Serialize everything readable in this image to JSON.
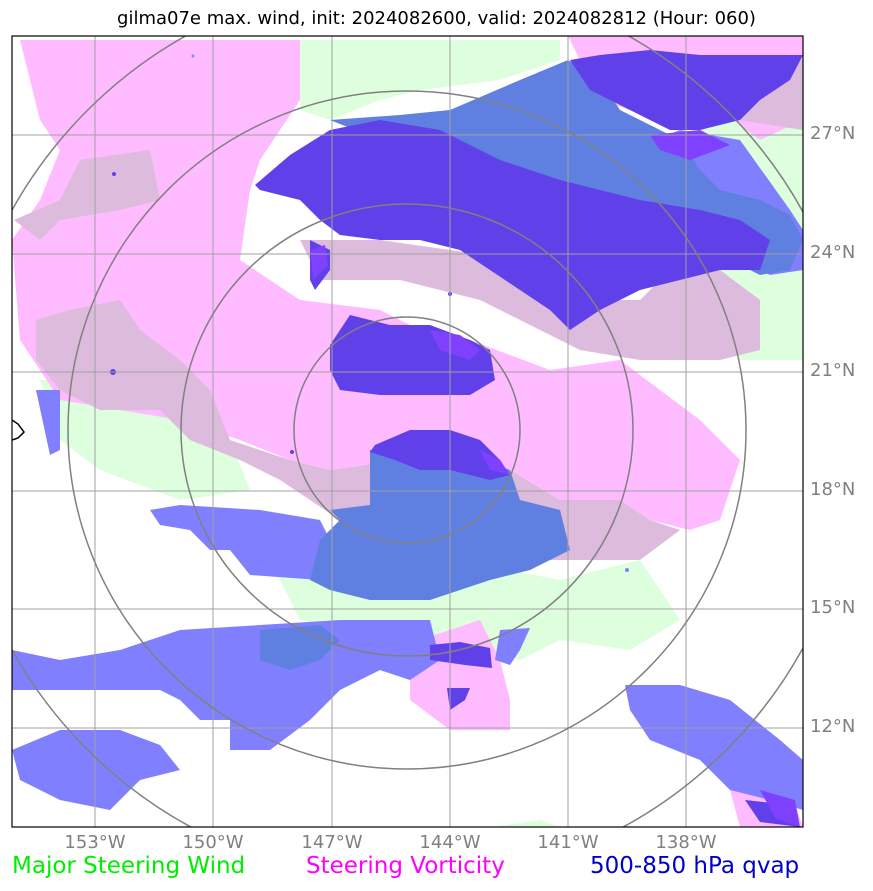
{
  "title": "gilma07e max. wind, init: 2024082600, valid: 2024082812 (Hour: 060)",
  "lon_labels": [
    "153°W",
    "150°W",
    "147°W",
    "144°W",
    "141°W",
    "138°W"
  ],
  "lat_labels": [
    "27°N",
    "24°N",
    "21°N",
    "18°N",
    "15°N",
    "12°N"
  ],
  "legend": {
    "wind": "Major Steering Wind",
    "vorticity": "Steering Vorticity",
    "qvap": "500-850 hPa qvap"
  },
  "colors": {
    "wind": "#ddffdd",
    "vorticity": "#ffbbff",
    "overlap": "#ddbbdd",
    "qvap_light": "#8080ff",
    "qvap_mid": "#5f80e0",
    "qvap_dark": "#6040e8",
    "qvap_violet": "#8040ff",
    "grid": "#a0a0a0",
    "rings": "#808080"
  }
}
